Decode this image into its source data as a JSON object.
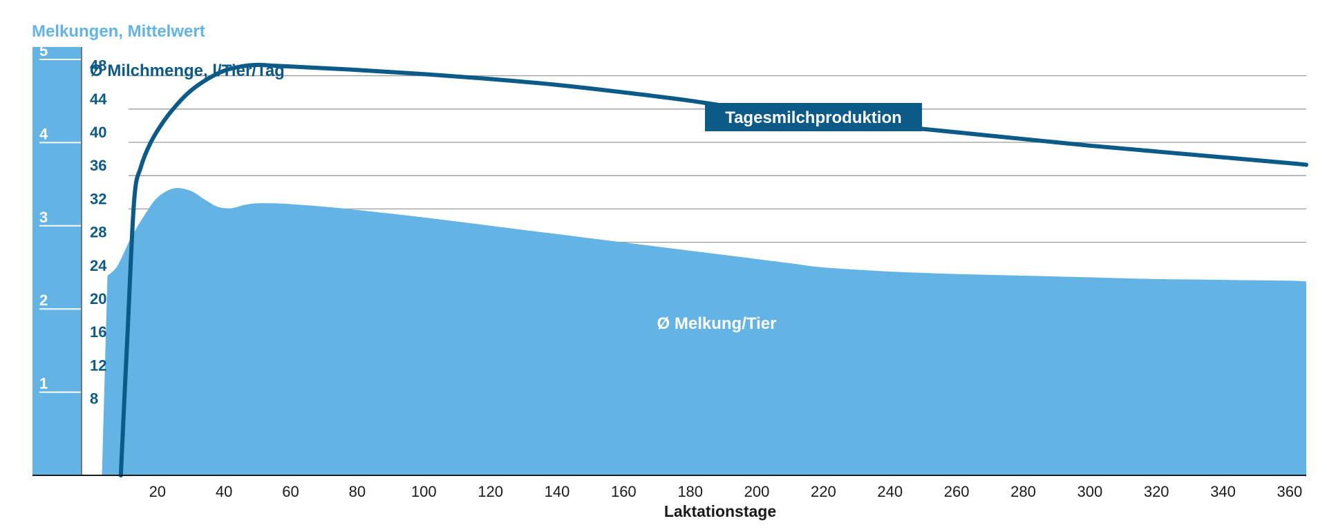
{
  "colors": {
    "light_blue": "#63b3e4",
    "dark_blue": "#0b5a87",
    "grid": "#9a9a9a",
    "axis": "#1a1a1a",
    "white": "#ffffff"
  },
  "chart_data": {
    "type": "area",
    "title": "",
    "xlabel": "Laktationstage",
    "x_ticks": [
      20,
      40,
      60,
      80,
      100,
      120,
      140,
      160,
      180,
      200,
      220,
      240,
      260,
      280,
      300,
      320,
      340,
      360
    ],
    "xlim": [
      -3,
      365
    ],
    "left_axis": {
      "label": "Melkungen, Mittelwert",
      "ticks": [
        1,
        2,
        3,
        4,
        5
      ],
      "ylim": [
        0,
        5
      ]
    },
    "right_axis": {
      "label": "Ø Milchmenge, l/Tier/Tag",
      "ticks": [
        8,
        12,
        16,
        20,
        24,
        28,
        32,
        36,
        40,
        44,
        48
      ],
      "ylim": [
        0,
        52
      ]
    },
    "grid": true,
    "series": [
      {
        "name": "Ø Melkung/Tier",
        "kind": "area",
        "axis": "left",
        "x": [
          5,
          8,
          12,
          16,
          20,
          25,
          30,
          34,
          38,
          42,
          46,
          50,
          55,
          60,
          70,
          80,
          100,
          120,
          140,
          160,
          180,
          200,
          210,
          220,
          240,
          260,
          280,
          300,
          320,
          340,
          360,
          365
        ],
        "values": [
          2.4,
          2.52,
          2.85,
          3.12,
          3.34,
          3.45,
          3.42,
          3.32,
          3.23,
          3.21,
          3.25,
          3.27,
          3.27,
          3.26,
          3.23,
          3.19,
          3.1,
          3.0,
          2.9,
          2.8,
          2.7,
          2.6,
          2.55,
          2.5,
          2.45,
          2.42,
          2.4,
          2.38,
          2.36,
          2.35,
          2.34,
          2.33
        ]
      },
      {
        "name": "Tagesmilchproduktion",
        "kind": "line",
        "axis": "right",
        "x": [
          9,
          11,
          13,
          15,
          18,
          22,
          26,
          30,
          35,
          40,
          45,
          50,
          55,
          60,
          80,
          100,
          120,
          140,
          160,
          180,
          200,
          220,
          240,
          260,
          280,
          300,
          320,
          340,
          360,
          365
        ],
        "values": [
          0,
          17,
          33,
          37,
          40,
          42.6,
          44.6,
          46.2,
          47.6,
          48.6,
          49.1,
          49.3,
          49.2,
          49.1,
          48.7,
          48.2,
          47.6,
          46.9,
          46.0,
          45.0,
          43.8,
          42.8,
          42.0,
          41.2,
          40.4,
          39.6,
          38.9,
          38.2,
          37.5,
          37.3
        ]
      }
    ],
    "annotations": {
      "area_label": "Ø Melkung/Tier",
      "line_label": "Tagesmilchproduktion"
    }
  }
}
